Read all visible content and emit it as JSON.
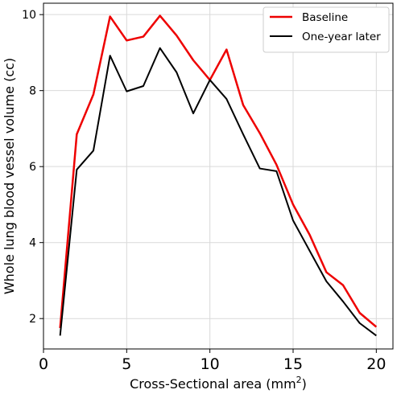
{
  "chart_data": {
    "type": "line",
    "xlabel": "Cross-Sectional area (mm",
    "xlabel_sup": "2",
    "xlabel_close": ")",
    "ylabel": "Whole lung blood vessel volume (cc)",
    "xlim": [
      0,
      21
    ],
    "ylim": [
      1.2,
      10.3
    ],
    "xticks": [
      0,
      5,
      10,
      15,
      20
    ],
    "yticks": [
      2,
      4,
      6,
      8,
      10
    ],
    "grid": true,
    "legend_position": "upper-right",
    "series": [
      {
        "name": "Baseline",
        "color": "#ee0000",
        "x": [
          1,
          2,
          3,
          4,
          5,
          6,
          7,
          8,
          9,
          10,
          11,
          12,
          13,
          14,
          15,
          16,
          17,
          18,
          19,
          20
        ],
        "y": [
          1.75,
          6.85,
          7.9,
          9.95,
          9.32,
          9.42,
          9.97,
          9.45,
          8.8,
          8.28,
          9.08,
          7.62,
          6.88,
          6.05,
          5.0,
          4.2,
          3.22,
          2.88,
          2.15,
          1.78
        ]
      },
      {
        "name": "One-year later",
        "color": "#000000",
        "x": [
          1,
          2,
          3,
          4,
          5,
          6,
          7,
          8,
          9,
          10,
          11,
          12,
          13,
          14,
          15,
          16,
          17,
          18,
          19,
          20
        ],
        "y": [
          1.55,
          5.92,
          6.42,
          8.92,
          7.98,
          8.12,
          9.12,
          8.48,
          7.4,
          8.28,
          7.78,
          6.85,
          5.95,
          5.88,
          4.58,
          3.78,
          2.98,
          2.45,
          1.88,
          1.55
        ]
      }
    ]
  }
}
